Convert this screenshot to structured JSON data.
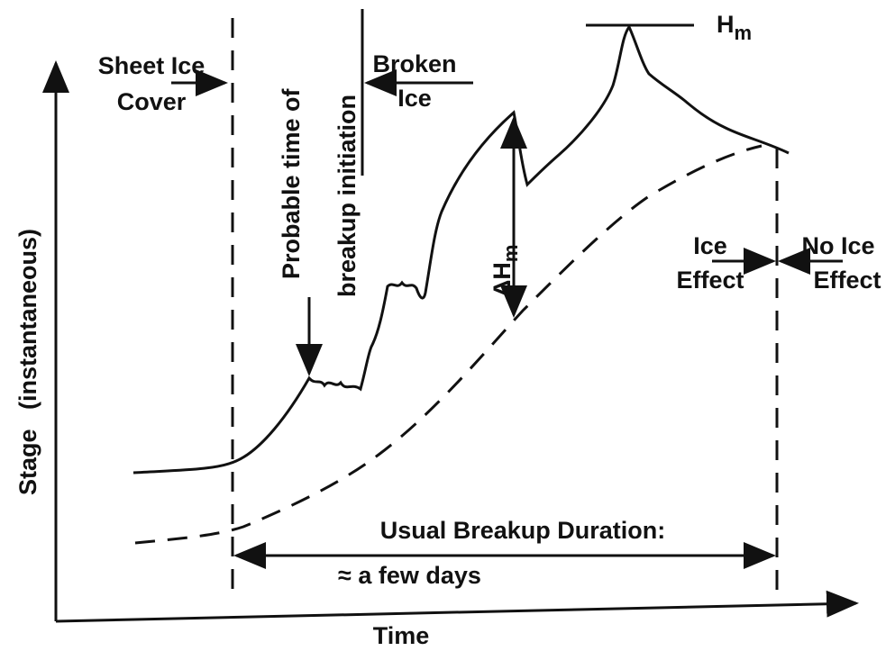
{
  "labels": {
    "sheet_ice": [
      "Sheet Ice",
      "Cover"
    ],
    "probable_time": [
      "Probable time of",
      "breakup initiation"
    ],
    "broken_ice": [
      "Broken",
      "Ice"
    ],
    "peak": {
      "main": "H",
      "sub": "m"
    },
    "delta": {
      "main": "ΔH",
      "sub": "m"
    },
    "ice_effect": [
      "Ice",
      "Effect"
    ],
    "no_ice_effect": [
      "No Ice",
      "Effect"
    ],
    "duration": "Usual  Breakup  Duration:",
    "duration_value": "≈  a few days",
    "x_axis": "Time",
    "y_axis": [
      "Stage",
      "(instantaneous)"
    ]
  }
}
